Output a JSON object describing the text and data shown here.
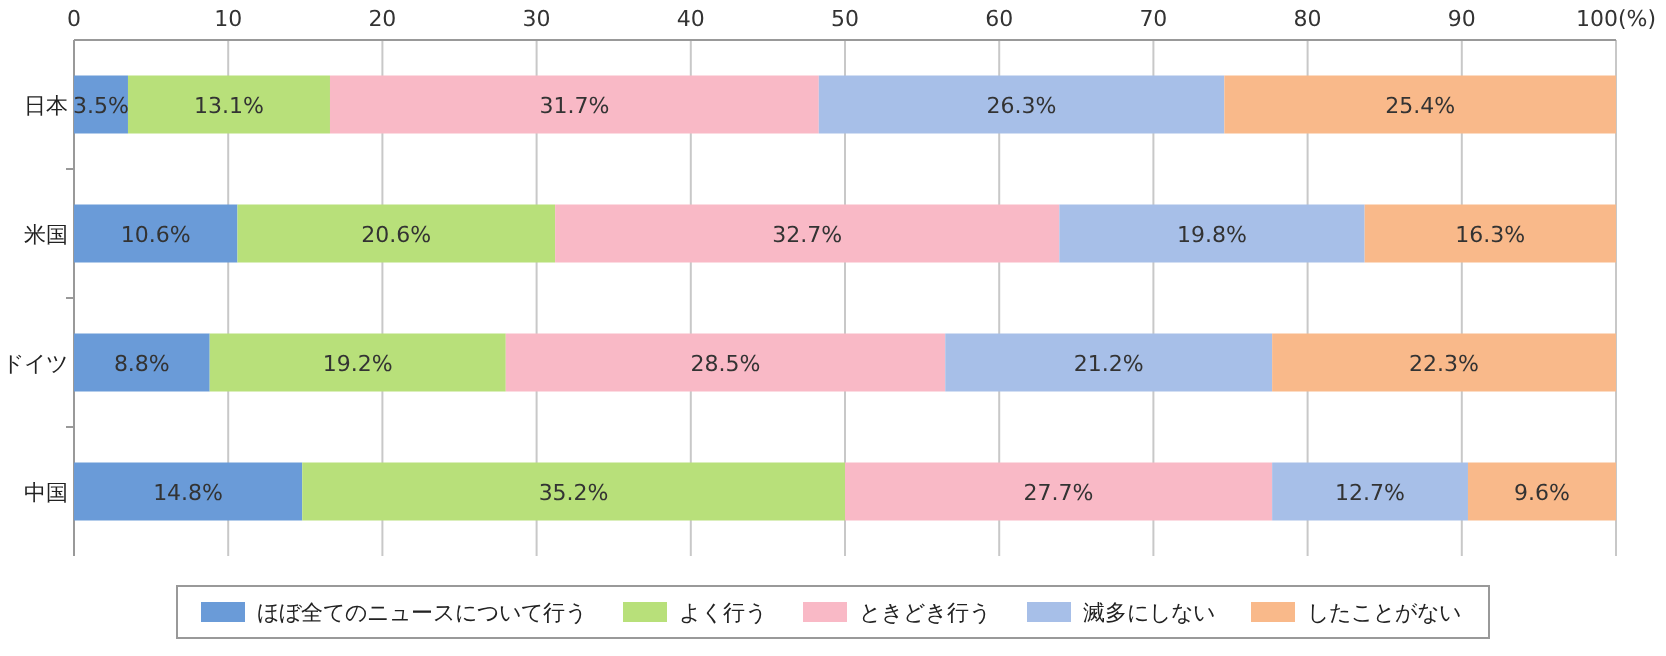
{
  "chart_data": {
    "type": "bar",
    "orientation": "horizontal",
    "stacked": true,
    "categories": [
      "日本",
      "米国",
      "ドイツ",
      "中国"
    ],
    "series": [
      {
        "name": "ほぼ全てのニュースについて行う",
        "color": "#6a9bd8",
        "values": [
          3.5,
          10.6,
          8.8,
          14.8
        ],
        "value_labels": [
          "3.5%",
          "10.6%",
          "8.8%",
          "14.8%"
        ]
      },
      {
        "name": "よく行う",
        "color": "#b8e07a",
        "values": [
          13.1,
          20.6,
          19.2,
          35.2
        ],
        "value_labels": [
          "13.1%",
          "20.6%",
          "19.2%",
          "35.2%"
        ]
      },
      {
        "name": "ときどき行う",
        "color": "#f9b9c6",
        "values": [
          31.7,
          32.7,
          28.5,
          27.7
        ],
        "value_labels": [
          "31.7%",
          "32.7%",
          "28.5%",
          "27.7%"
        ]
      },
      {
        "name": "滅多にしない",
        "color": "#a7bfe8",
        "values": [
          26.3,
          19.8,
          21.2,
          12.7
        ],
        "value_labels": [
          "26.3%",
          "19.8%",
          "21.2%",
          "12.7%"
        ]
      },
      {
        "name": "したことがない",
        "color": "#f9b98a",
        "values": [
          25.4,
          16.3,
          22.3,
          9.6
        ],
        "value_labels": [
          "25.4%",
          "16.3%",
          "22.3%",
          "9.6%"
        ]
      }
    ],
    "xlim": [
      0,
      100
    ],
    "xticks": [
      0,
      10,
      20,
      30,
      40,
      50,
      60,
      70,
      80,
      90,
      {
        "value": 100,
        "label": "100(%)"
      }
    ],
    "grid": "x",
    "legend": "bottom"
  }
}
